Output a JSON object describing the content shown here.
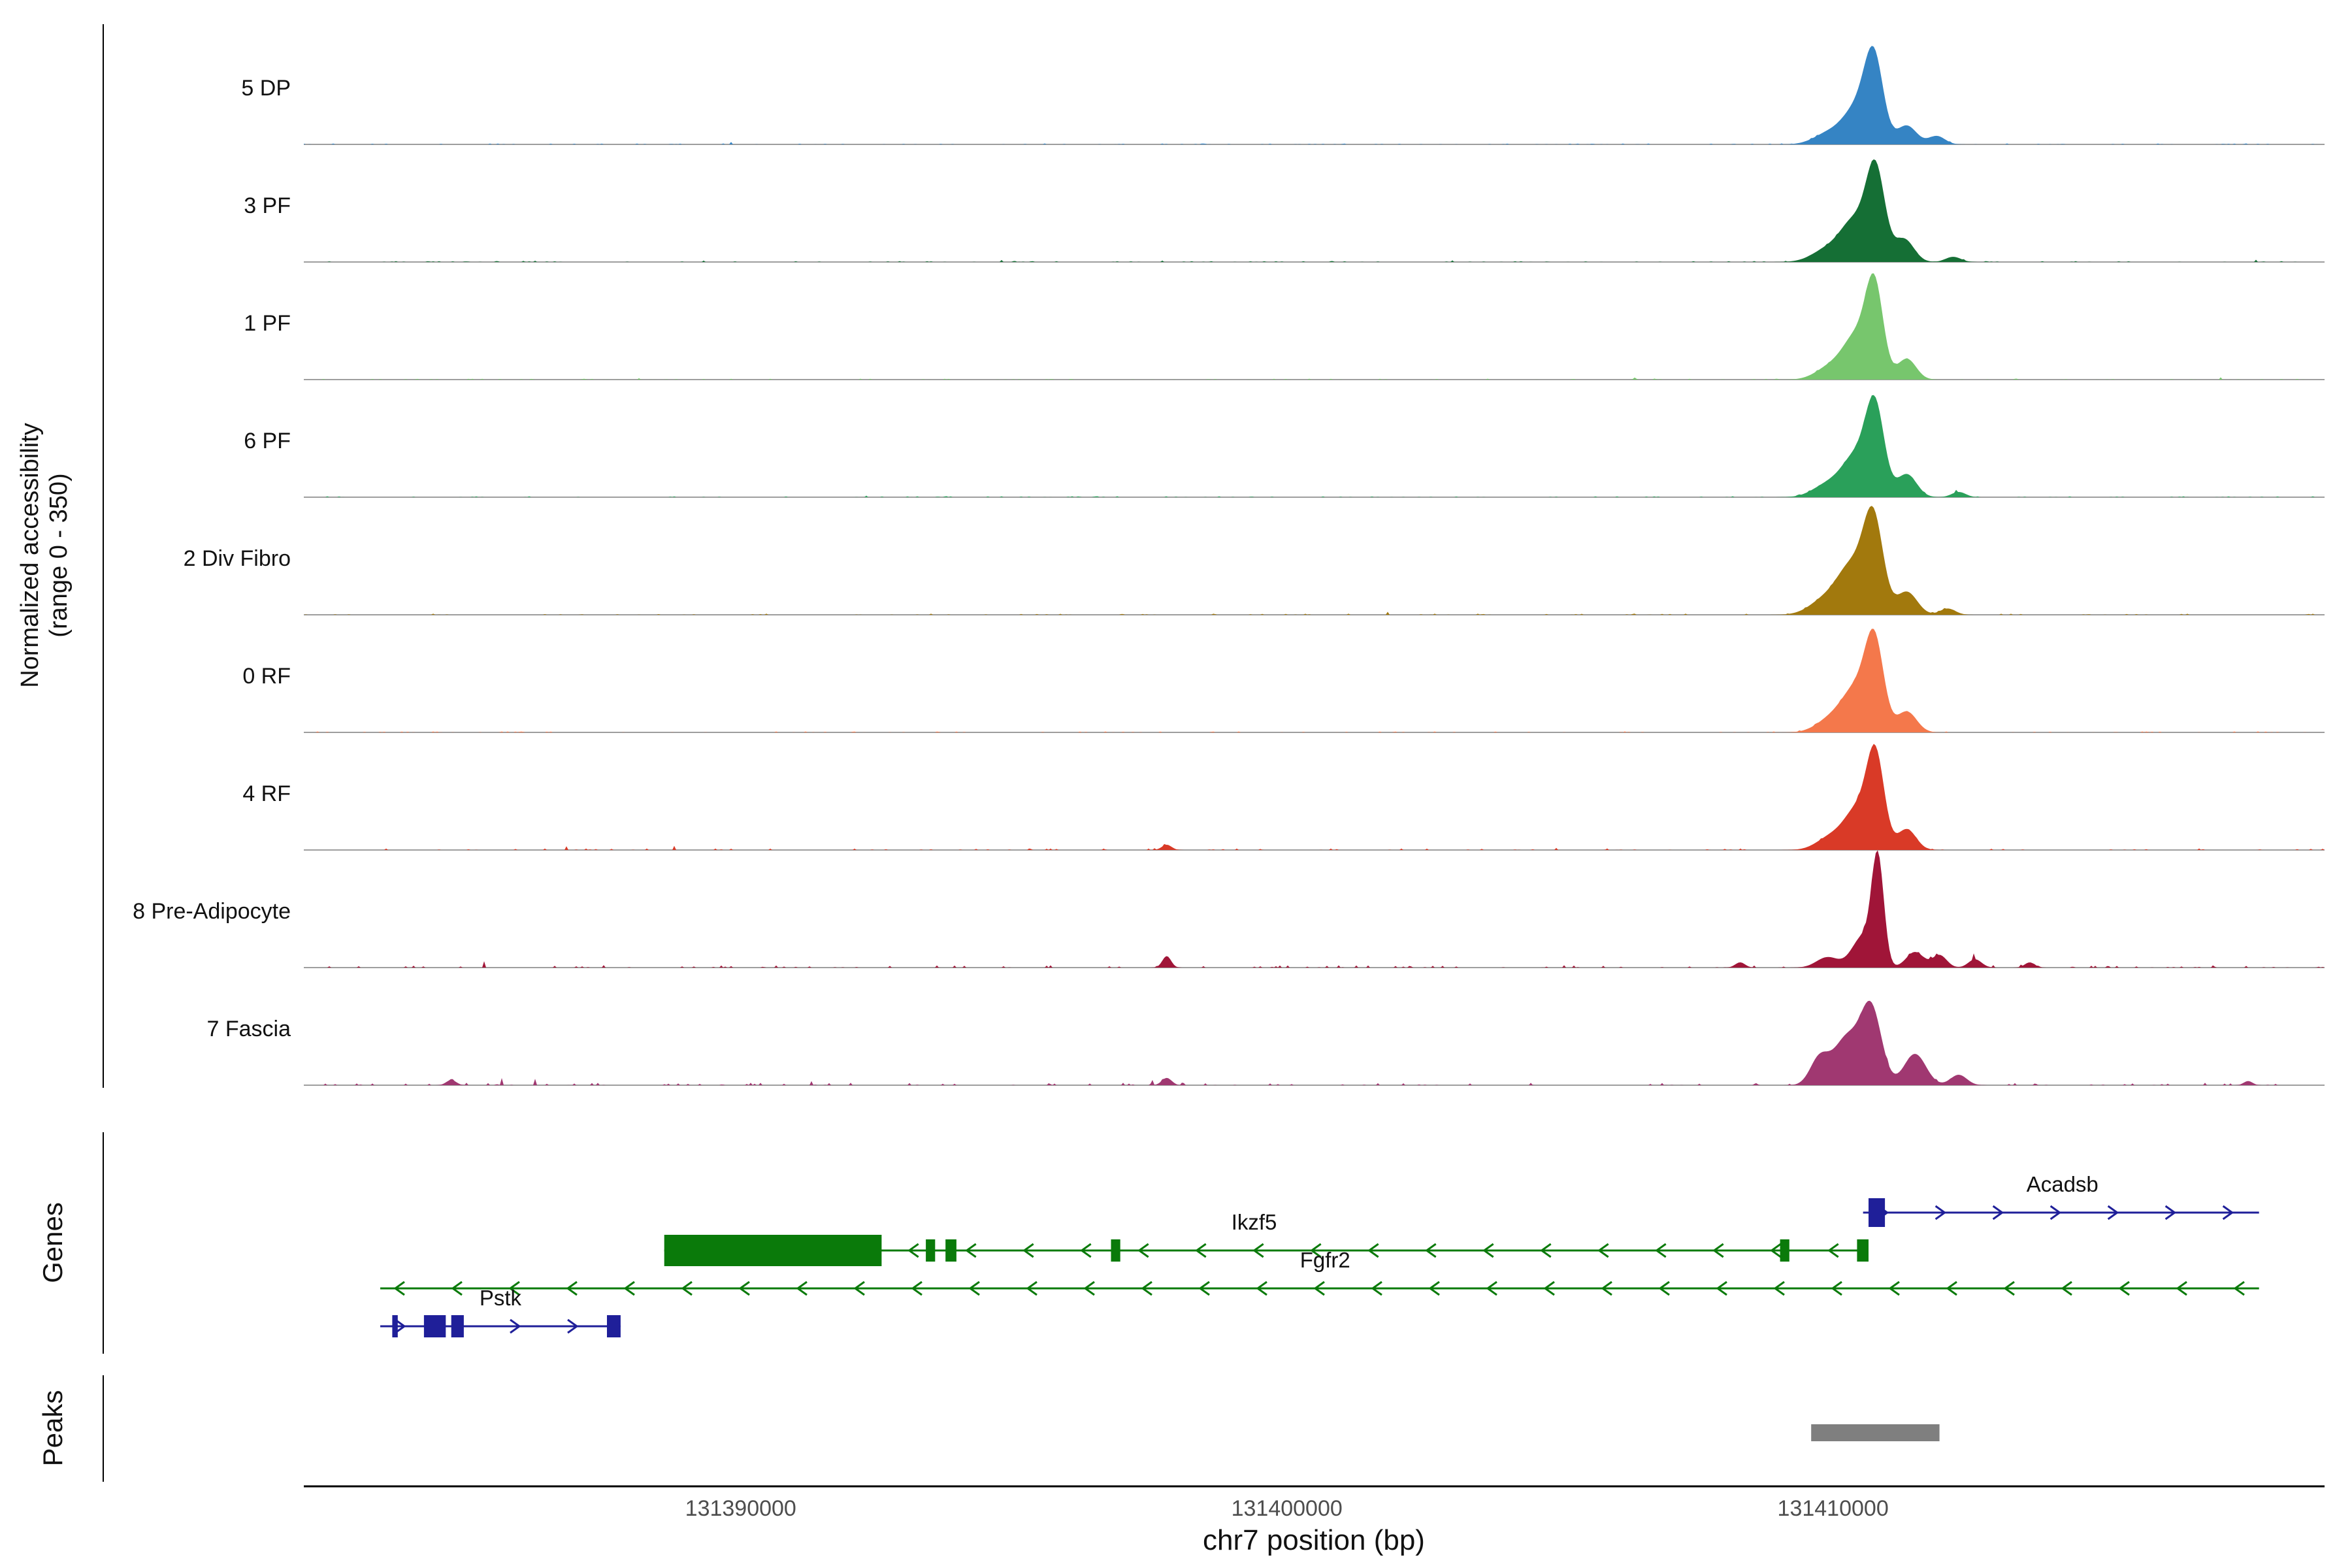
{
  "y_axis": {
    "label_line1": "Normalized accessibility",
    "label_line2": "(range 0 - 350)"
  },
  "x_axis": {
    "title": "chr7 position (bp)",
    "ticks": [
      {
        "bp": 131390000,
        "label": "131390000"
      },
      {
        "bp": 131400000,
        "label": "131400000"
      },
      {
        "bp": 131410000,
        "label": "131410000"
      }
    ]
  },
  "sections": {
    "genes": "Genes",
    "peaks": "Peaks"
  },
  "colors": {
    "baseline": "#9e9e9e",
    "axis": "#000000",
    "tick_text": "#4d4d4d",
    "peak_bar": "#7f7f7f",
    "gene_green": "#0a7a0a",
    "gene_blue": "#1f1f99"
  },
  "chart_data": {
    "type": "area",
    "title": "",
    "xlabel": "chr7 position (bp)",
    "ylabel": "Normalized accessibility (range 0 - 350)",
    "x_range_bp": [
      131382000,
      131419000
    ],
    "y_range": [
      0,
      350
    ],
    "tracks": [
      {
        "label": "5 DP",
        "color": "#3584c4",
        "noise": 0.5,
        "peaks": [
          [
            131410750,
            170,
            0.75
          ],
          [
            131410450,
            260,
            0.35
          ],
          [
            131411350,
            180,
            0.18
          ],
          [
            131409900,
            260,
            0.1
          ],
          [
            131411900,
            150,
            0.08
          ]
        ]
      },
      {
        "label": "3 PF",
        "color": "#156f35",
        "noise": 0.5,
        "peaks": [
          [
            131410780,
            170,
            0.85
          ],
          [
            131410400,
            250,
            0.38
          ],
          [
            131411300,
            180,
            0.22
          ],
          [
            131409900,
            280,
            0.12
          ],
          [
            131412200,
            140,
            0.05
          ]
        ]
      },
      {
        "label": "1 PF",
        "color": "#77c66d",
        "noise": 0.5,
        "peaks": [
          [
            131410760,
            160,
            0.85
          ],
          [
            131410430,
            240,
            0.4
          ],
          [
            131411350,
            170,
            0.2
          ],
          [
            131409950,
            260,
            0.12
          ]
        ]
      },
      {
        "label": "6 PF",
        "color": "#2aa05a",
        "noise": 0.5,
        "peaks": [
          [
            131410770,
            170,
            0.82
          ],
          [
            131410420,
            250,
            0.38
          ],
          [
            131411350,
            180,
            0.22
          ],
          [
            131409900,
            270,
            0.12
          ],
          [
            131412300,
            130,
            0.05
          ]
        ]
      },
      {
        "label": "2 Div Fibro",
        "color": "#a2790d",
        "noise": 0.6,
        "peaks": [
          [
            131410740,
            180,
            0.88
          ],
          [
            131410350,
            260,
            0.45
          ],
          [
            131411350,
            190,
            0.22
          ],
          [
            131409850,
            280,
            0.14
          ],
          [
            131412100,
            140,
            0.06
          ]
        ]
      },
      {
        "label": "0 RF",
        "color": "#f4784b",
        "noise": 0.5,
        "peaks": [
          [
            131410760,
            170,
            0.82
          ],
          [
            131410420,
            250,
            0.4
          ],
          [
            131411350,
            180,
            0.2
          ],
          [
            131409950,
            260,
            0.12
          ]
        ]
      },
      {
        "label": "4 RF",
        "color": "#d93a27",
        "noise": 0.8,
        "peaks": [
          [
            131410780,
            160,
            0.85
          ],
          [
            131410450,
            240,
            0.38
          ],
          [
            131411350,
            170,
            0.2
          ],
          [
            131409950,
            250,
            0.12
          ],
          [
            131397800,
            90,
            0.05
          ]
        ]
      },
      {
        "label": "8 Pre-Adipocyte",
        "color": "#a01538",
        "noise": 1.2,
        "peaks": [
          [
            131410820,
            110,
            1.0
          ],
          [
            131410550,
            200,
            0.3
          ],
          [
            131411500,
            160,
            0.15
          ],
          [
            131411950,
            130,
            0.12
          ],
          [
            131412600,
            120,
            0.08
          ],
          [
            131409900,
            200,
            0.1
          ],
          [
            131397800,
            80,
            0.11
          ],
          [
            131408300,
            90,
            0.05
          ],
          [
            131413600,
            90,
            0.05
          ]
        ]
      },
      {
        "label": "7 Fascia",
        "color": "#a03871",
        "noise": 1.3,
        "peaks": [
          [
            131410700,
            190,
            0.72
          ],
          [
            131410250,
            240,
            0.45
          ],
          [
            131411500,
            200,
            0.3
          ],
          [
            131409750,
            170,
            0.25
          ],
          [
            131412300,
            150,
            0.1
          ],
          [
            131397800,
            90,
            0.07
          ],
          [
            131384700,
            90,
            0.05
          ],
          [
            131417600,
            80,
            0.04
          ]
        ]
      }
    ],
    "genes": [
      {
        "name": "Acadsb",
        "color": "#1f1f99",
        "strand": "+",
        "row": 0,
        "start": 131410550,
        "end": 131417800,
        "label_bp": 131414200,
        "exons": [
          [
            131410650,
            131410950,
            44
          ]
        ]
      },
      {
        "name": "Ikzf5",
        "color": "#0a7a0a",
        "strand": "-",
        "row": 1,
        "start": 131388600,
        "end": 131410650,
        "label_bp": 131399400,
        "exons": [
          [
            131388600,
            131392580,
            48
          ],
          [
            131393390,
            131393560
          ],
          [
            131393750,
            131393950
          ],
          [
            131396780,
            131396950
          ],
          [
            131409030,
            131409200
          ],
          [
            131410440,
            131410650
          ]
        ]
      },
      {
        "name": "Fgfr2",
        "color": "#0a7a0a",
        "strand": "-",
        "row": 2,
        "start": 131383400,
        "end": 131417800,
        "label_bp": 131400700,
        "exons": []
      },
      {
        "name": "Pstk",
        "color": "#1f1f99",
        "strand": "+",
        "row": 3,
        "start": 131383400,
        "end": 131387800,
        "label_bp": 131385600,
        "exons": [
          [
            131383620,
            131383720
          ],
          [
            131384200,
            131384600
          ],
          [
            131384700,
            131384930
          ],
          [
            131387550,
            131387800
          ]
        ]
      }
    ],
    "peaks_track": [
      {
        "start": 131409600,
        "end": 131411950
      }
    ]
  }
}
